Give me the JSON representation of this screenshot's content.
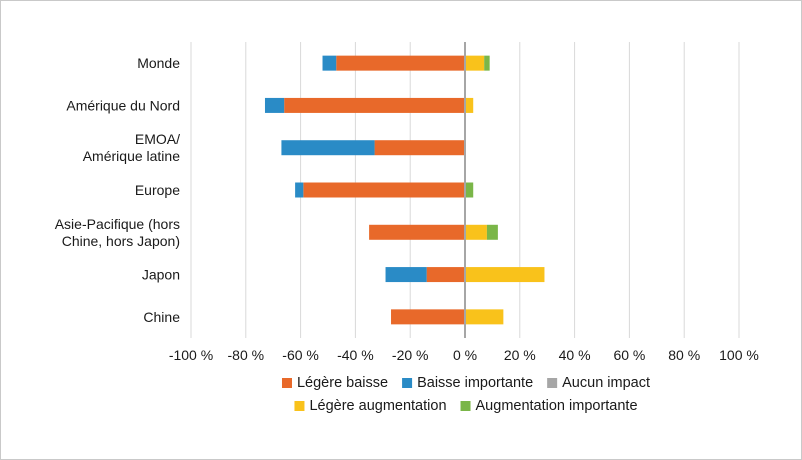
{
  "chart_data": {
    "type": "bar",
    "orientation": "horizontal",
    "stacked": true,
    "categories": [
      [
        "Monde"
      ],
      [
        "Amérique du Nord"
      ],
      [
        "EMOA/",
        "Amérique latine"
      ],
      [
        "Europe"
      ],
      [
        "Asie-Pacifique (hors",
        "Chine, hors Japon)"
      ],
      [
        "Japon"
      ],
      [
        "Chine"
      ]
    ],
    "series": [
      {
        "name": "Légère baisse",
        "color": "#e8692a",
        "side": "negative",
        "values": [
          -47,
          -66,
          -33,
          -59,
          -35,
          -14,
          -27
        ]
      },
      {
        "name": "Baisse importante",
        "color": "#2a8bc6",
        "side": "negative",
        "values": [
          -5,
          -7,
          -34,
          -3,
          0,
          -15,
          0
        ]
      },
      {
        "name": "Aucun impact",
        "color": "#a6a6a6",
        "side": "none",
        "values": [
          0,
          0,
          0,
          0,
          0,
          0,
          0
        ]
      },
      {
        "name": "Légère augmentation",
        "color": "#f9c21b",
        "side": "positive",
        "values": [
          7,
          3,
          0,
          0,
          8,
          29,
          14
        ]
      },
      {
        "name": "Augmentation importante",
        "color": "#7ab648",
        "side": "positive",
        "values": [
          2,
          0,
          0,
          3,
          4,
          0,
          0
        ]
      }
    ],
    "x_ticks": [
      -100,
      -80,
      -60,
      -40,
      -20,
      0,
      20,
      40,
      60,
      80,
      100
    ],
    "x_tick_labels": [
      "-100 %",
      "-80 %",
      "-60 %",
      "-40 %",
      "-20 %",
      "0 %",
      "20 %",
      "40 %",
      "60 %",
      "80 %",
      "100 %"
    ],
    "xlim": [
      -100,
      100
    ],
    "grid": true,
    "legend_position": "bottom-center"
  }
}
